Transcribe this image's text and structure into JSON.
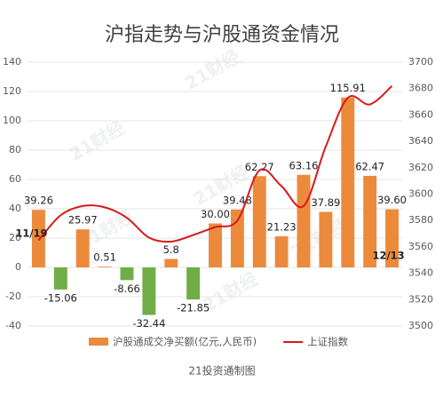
{
  "chart_data": {
    "type": "bar-line",
    "title": "沪指走势与沪股通资金情况",
    "footer": "21投资通制图",
    "watermark": "21财经",
    "categories": [
      "11/19",
      null,
      null,
      null,
      null,
      null,
      null,
      null,
      null,
      null,
      null,
      null,
      null,
      null,
      null,
      null,
      "12/13"
    ],
    "series": [
      {
        "name": "沪股通成交净买额(亿元,人民币)",
        "type": "bar",
        "color": "#ec8a3c",
        "negative_color": "#70ad47",
        "values": [
          39.26,
          -15.06,
          25.97,
          0.51,
          -8.66,
          -32.44,
          5.8,
          -21.85,
          30.0,
          39.48,
          62.27,
          21.23,
          63.16,
          37.89,
          115.91,
          62.47,
          39.6
        ],
        "value_labels": [
          "39.26",
          "-15.06",
          "25.97",
          "0.51",
          "-8.66",
          "-32.44",
          "5.8",
          "-21.85",
          "30.00",
          "39.48",
          "62.27",
          "21.23",
          "63.16",
          "37.89",
          "115.91",
          "62.47",
          "39.60"
        ]
      },
      {
        "name": "上证指数",
        "type": "line",
        "axis": "y2",
        "color": "#d7191c",
        "values": [
          3565,
          3584,
          3591,
          3590,
          3582,
          3567,
          3564,
          3569,
          3575,
          3580,
          3618,
          3606,
          3591,
          3636,
          3673,
          3668,
          3682
        ]
      }
    ],
    "ylim": [
      -40,
      140
    ],
    "yticks": [
      -40,
      -20,
      0,
      20,
      40,
      60,
      80,
      100,
      120,
      140
    ],
    "y2lim": [
      3500,
      3700
    ],
    "y2ticks": [
      3500,
      3520,
      3540,
      3560,
      3580,
      3600,
      3620,
      3640,
      3660,
      3680,
      3700
    ],
    "grid": true,
    "legend": "bottom"
  }
}
